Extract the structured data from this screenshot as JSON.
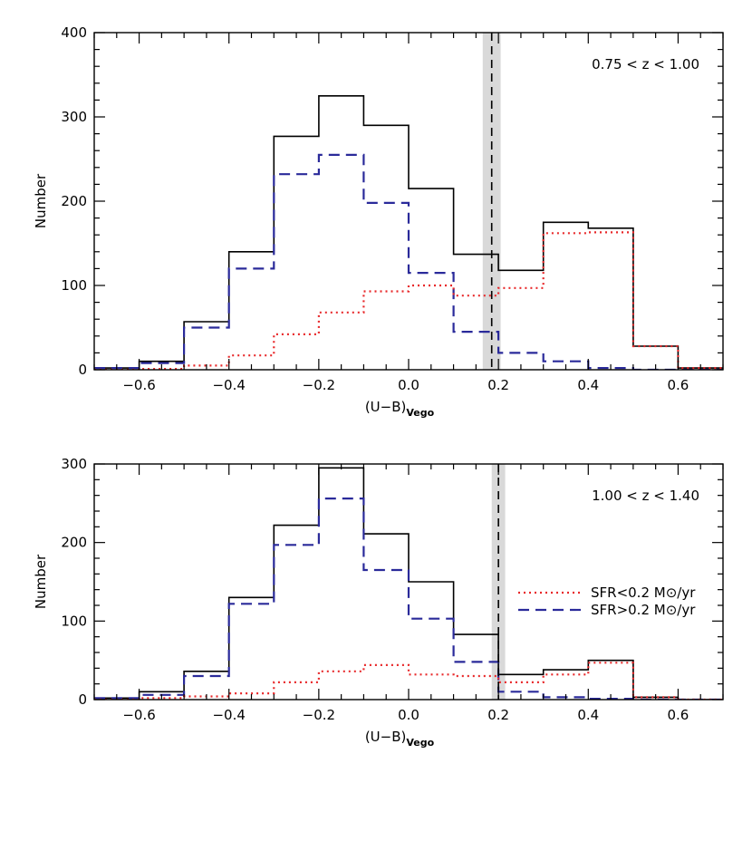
{
  "chart_data": [
    {
      "type": "line",
      "subtype": "step-histogram",
      "annotation": "0.75 < z < 1.00",
      "xlabel": "(U−B)",
      "xlabel_sub": "Vego",
      "ylabel": "Number",
      "xlim": [
        -0.7,
        0.7
      ],
      "ylim": [
        0,
        400
      ],
      "xticks": [
        -0.6,
        -0.4,
        -0.2,
        0.0,
        0.2,
        0.4,
        0.6
      ],
      "xtick_labels": [
        "−0.6",
        "−0.4",
        "−0.2",
        "0.0",
        "0.2",
        "0.4",
        "0.6"
      ],
      "yticks": [
        0,
        100,
        200,
        300,
        400
      ],
      "ytick_labels": [
        "0",
        "100",
        "200",
        "300",
        "400"
      ],
      "bin_edges": [
        -0.7,
        -0.6,
        -0.5,
        -0.4,
        -0.3,
        -0.2,
        -0.1,
        0.0,
        0.1,
        0.2,
        0.3,
        0.4,
        0.5,
        0.6,
        0.7
      ],
      "divider": {
        "x": 0.185,
        "band": [
          0.165,
          0.205
        ],
        "band_color": "#d9d9d9"
      },
      "series": [
        {
          "key": "all",
          "color": "#000000",
          "dash": "none",
          "values": [
            2,
            10,
            57,
            140,
            277,
            325,
            290,
            215,
            137,
            118,
            175,
            168,
            28,
            2
          ]
        },
        {
          "key": "high",
          "name": "SFR>0.2 M⊙/yr",
          "color": "#2a2a9a",
          "dash": "12,7",
          "values": [
            2,
            8,
            50,
            120,
            232,
            255,
            198,
            115,
            45,
            20,
            10,
            2,
            0,
            0
          ]
        },
        {
          "key": "low",
          "name": "SFR<0.2 M⊙/yr",
          "color": "#e8282a",
          "dash": "2,4",
          "values": [
            0,
            1,
            5,
            17,
            42,
            68,
            93,
            100,
            88,
            97,
            162,
            163,
            28,
            2
          ]
        }
      ]
    },
    {
      "type": "line",
      "subtype": "step-histogram",
      "annotation": "1.00 < z < 1.40",
      "xlabel": "(U−B)",
      "xlabel_sub": "Vego",
      "ylabel": "Number",
      "xlim": [
        -0.7,
        0.7
      ],
      "ylim": [
        0,
        300
      ],
      "xticks": [
        -0.6,
        -0.4,
        -0.2,
        0.0,
        0.2,
        0.4,
        0.6
      ],
      "xtick_labels": [
        "−0.6",
        "−0.4",
        "−0.2",
        "0.0",
        "0.2",
        "0.4",
        "0.6"
      ],
      "yticks": [
        0,
        100,
        200,
        300
      ],
      "ytick_labels": [
        "0",
        "100",
        "200",
        "300"
      ],
      "bin_edges": [
        -0.7,
        -0.6,
        -0.5,
        -0.4,
        -0.3,
        -0.2,
        -0.1,
        0.0,
        0.1,
        0.2,
        0.3,
        0.4,
        0.5,
        0.6,
        0.7
      ],
      "divider": {
        "x": 0.2,
        "band": [
          0.185,
          0.215
        ],
        "band_color": "#d9d9d9"
      },
      "legend": {
        "placement": "right",
        "entries": [
          "low",
          "high"
        ]
      },
      "series": [
        {
          "key": "all",
          "color": "#000000",
          "dash": "none",
          "values": [
            2,
            10,
            36,
            130,
            222,
            295,
            211,
            150,
            83,
            32,
            38,
            50,
            3,
            0
          ]
        },
        {
          "key": "high",
          "name": "SFR>0.2 M⊙/yr",
          "color": "#2a2a9a",
          "dash": "12,7",
          "values": [
            2,
            6,
            30,
            122,
            197,
            256,
            165,
            103,
            48,
            10,
            3,
            1,
            0,
            0
          ]
        },
        {
          "key": "low",
          "name": "SFR<0.2 M⊙/yr",
          "color": "#e8282a",
          "dash": "2,4",
          "values": [
            0,
            2,
            4,
            8,
            22,
            36,
            44,
            32,
            30,
            22,
            32,
            47,
            3,
            0
          ]
        }
      ]
    }
  ]
}
